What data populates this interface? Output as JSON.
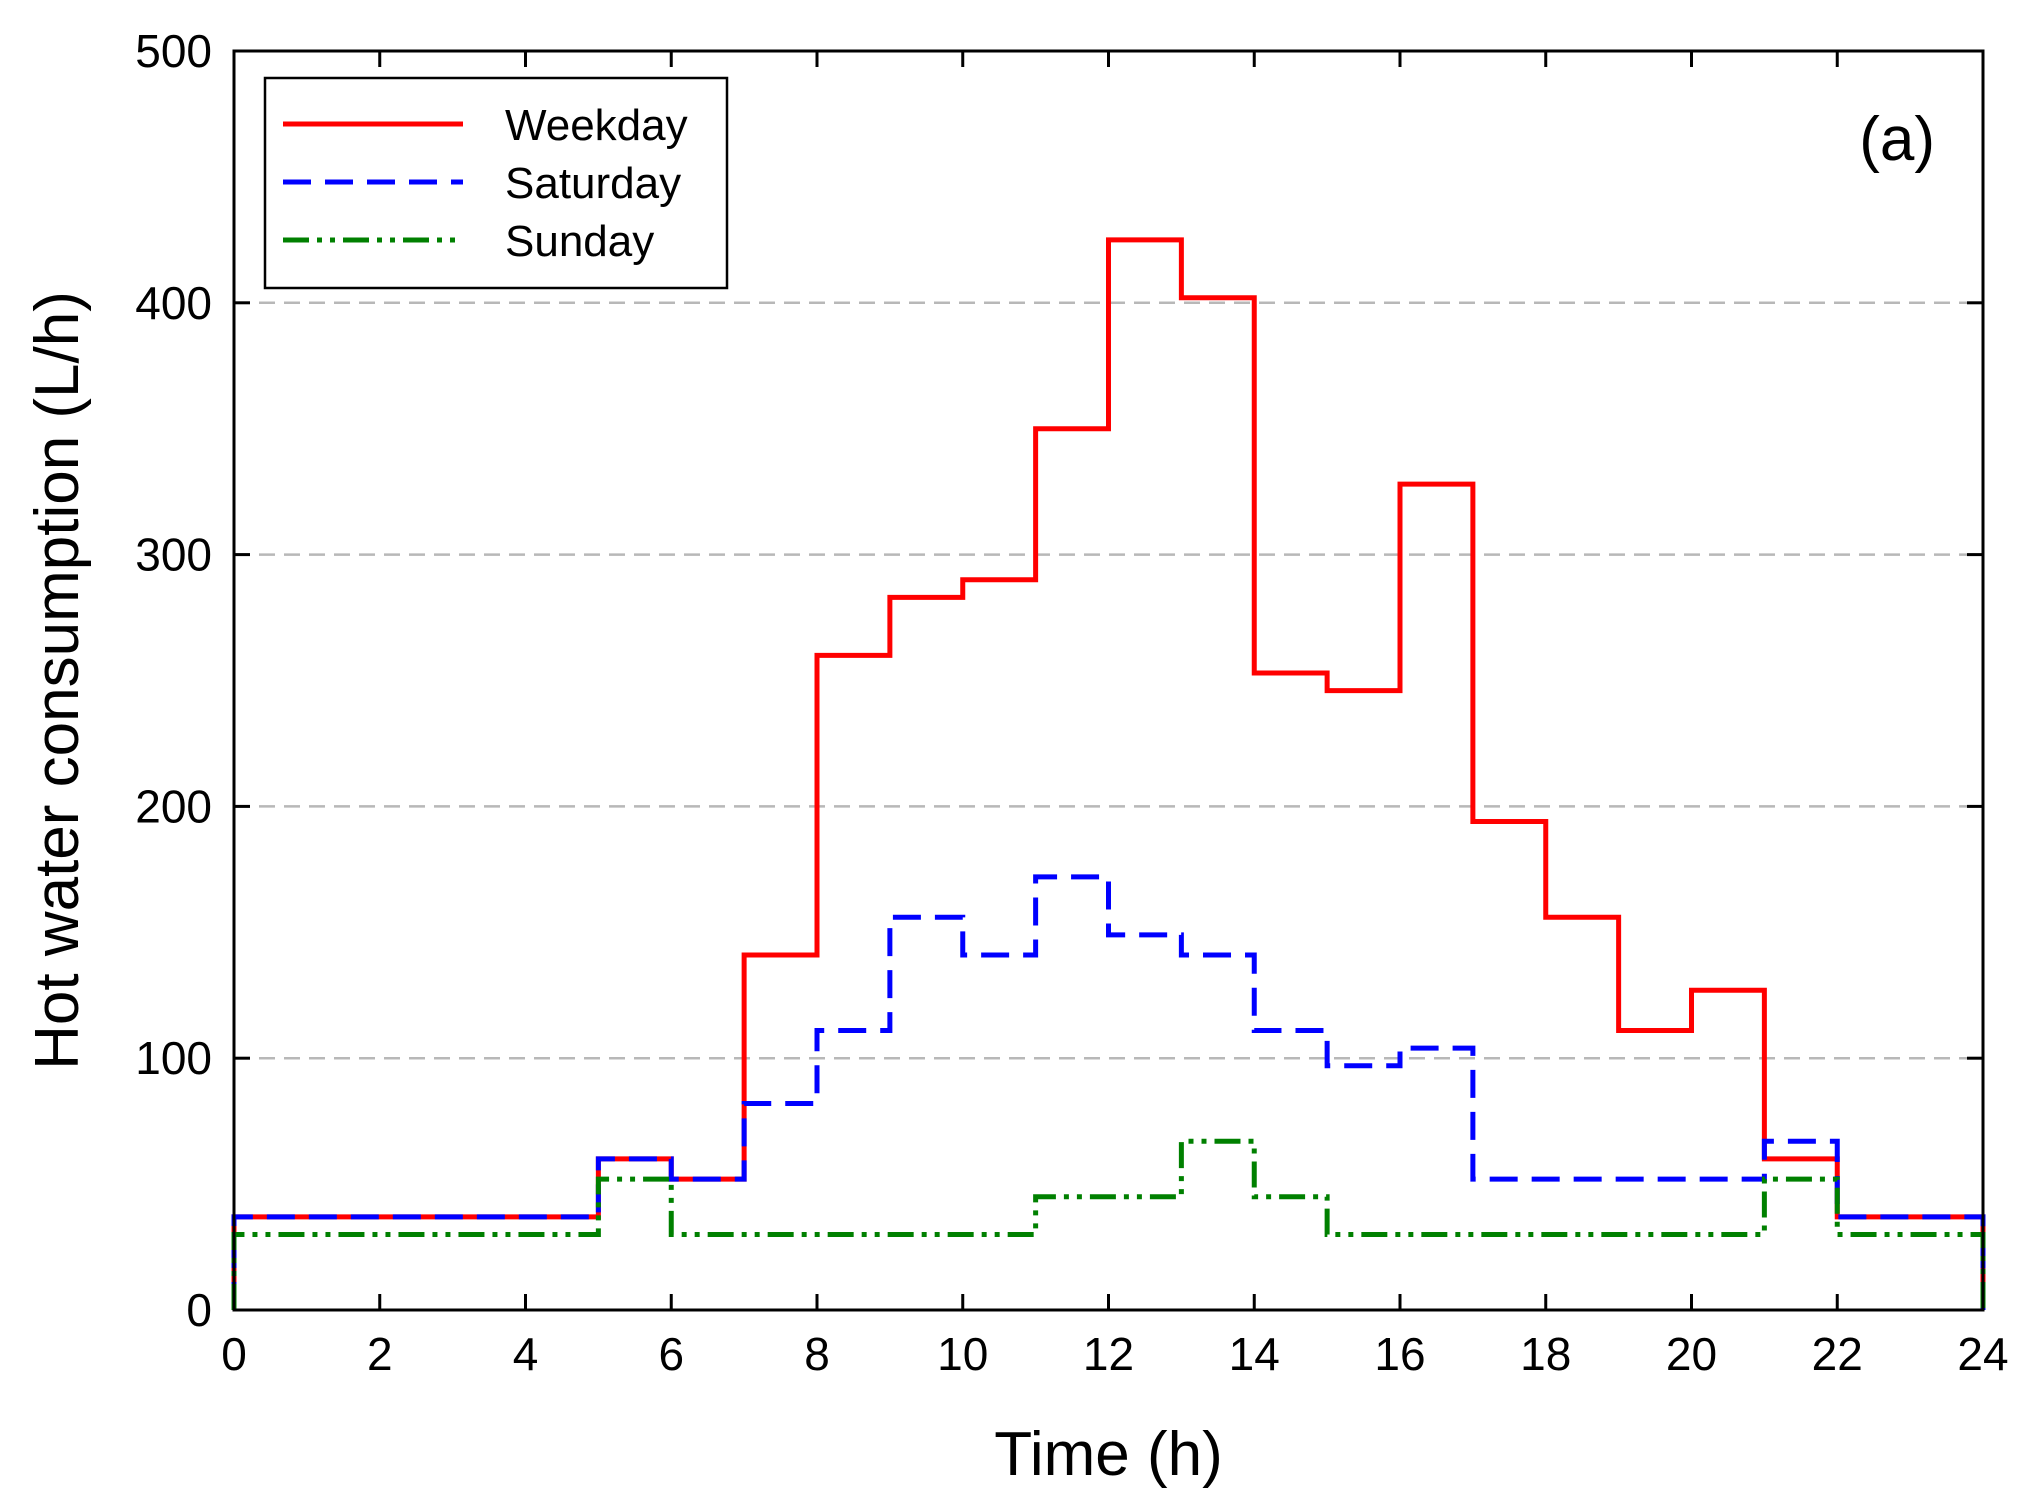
{
  "chart_data": {
    "type": "line",
    "step": "post",
    "panel_label": "(a)",
    "xlabel": "Time (h)",
    "ylabel": "Hot water consumption (L/h)",
    "xlim": [
      0,
      24
    ],
    "ylim": [
      0,
      500
    ],
    "xticks": [
      0,
      2,
      4,
      6,
      8,
      10,
      12,
      14,
      16,
      18,
      20,
      22,
      24
    ],
    "yticks": [
      0,
      100,
      200,
      300,
      400,
      500
    ],
    "gridlines_y": [
      100,
      200,
      300,
      400
    ],
    "legend_position": "top-left",
    "series": [
      {
        "name": "Weekday",
        "color": "#ff0000",
        "style": "solid",
        "values": [
          37,
          37,
          37,
          37,
          37,
          60,
          52,
          141,
          260,
          283,
          290,
          350,
          425,
          402,
          253,
          246,
          328,
          194,
          156,
          111,
          127,
          60,
          37,
          37
        ]
      },
      {
        "name": "Saturday",
        "color": "#0000ff",
        "style": "dashed",
        "values": [
          37,
          37,
          37,
          37,
          37,
          60,
          52,
          82,
          111,
          156,
          141,
          172,
          149,
          141,
          111,
          97,
          104,
          52,
          52,
          52,
          52,
          67,
          37,
          37
        ]
      },
      {
        "name": "Sunday",
        "color": "#008000",
        "style": "dash-dot-dot",
        "values": [
          30,
          30,
          30,
          30,
          30,
          52,
          30,
          30,
          30,
          30,
          30,
          45,
          45,
          67,
          45,
          30,
          30,
          30,
          30,
          30,
          30,
          52,
          30,
          30
        ]
      }
    ]
  }
}
